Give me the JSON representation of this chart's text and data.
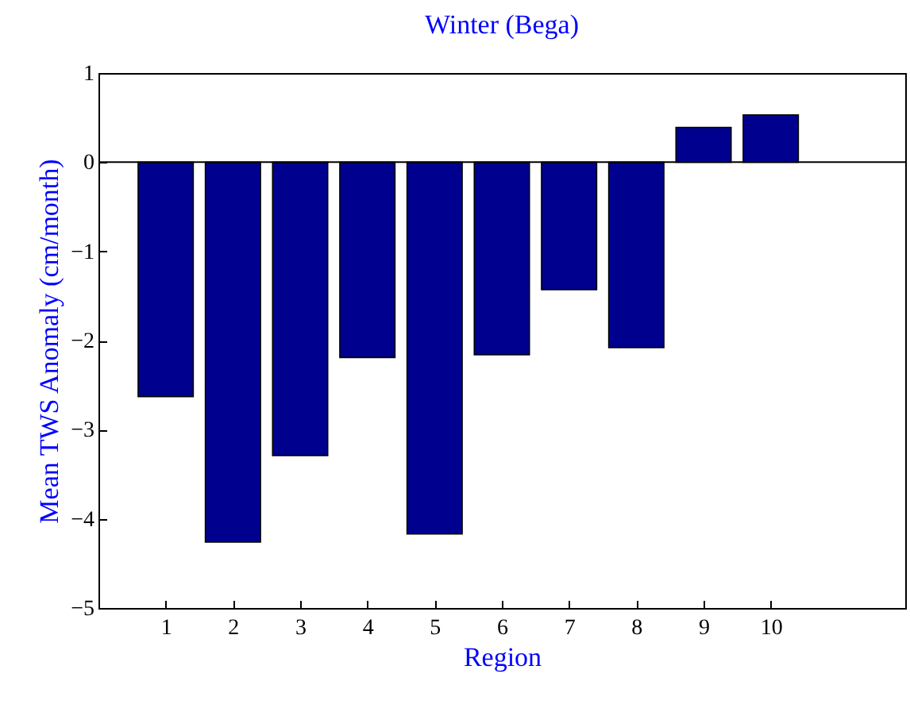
{
  "chart_data": {
    "type": "bar",
    "title": "Winter (Bega)",
    "xlabel": "Region",
    "ylabel": "Mean TWS Anomaly (cm/month)",
    "x": [
      1,
      2,
      3,
      4,
      5,
      6,
      7,
      8,
      9,
      10
    ],
    "values": [
      -2.63,
      -4.26,
      -3.29,
      -2.19,
      -4.17,
      -2.16,
      -1.43,
      -2.08,
      0.39,
      0.53
    ],
    "color": "#00008f",
    "xlim": [
      0,
      12
    ],
    "xticks": [
      1,
      2,
      3,
      4,
      5,
      6,
      7,
      8,
      9,
      10
    ],
    "ylim": [
      -5,
      1
    ],
    "yticks": [
      -5,
      -4,
      -3,
      -2,
      -1,
      0,
      1
    ],
    "ref_lines": [
      {
        "axis": "y",
        "value": 0
      }
    ],
    "grid": false
  }
}
